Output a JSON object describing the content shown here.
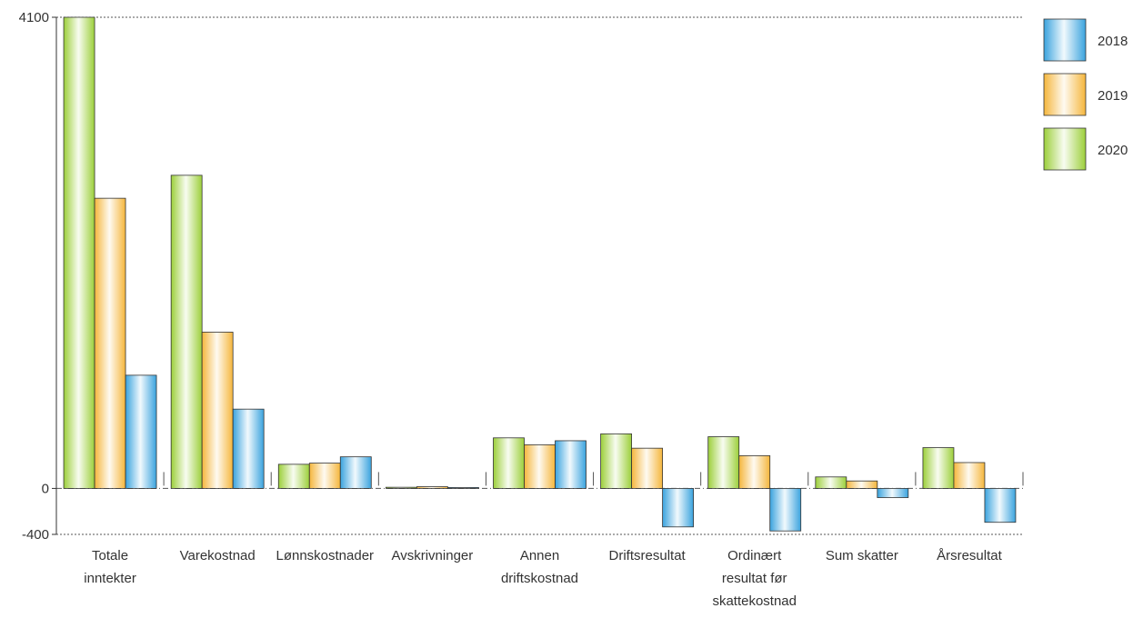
{
  "chart_data": {
    "type": "bar",
    "title": "",
    "xlabel": "",
    "ylabel": "",
    "ylim": [
      -400,
      4100
    ],
    "yticks": [
      4100,
      0,
      -400
    ],
    "grid": "dotted lines at 4100 and -400, dash-dot zero line",
    "legend_position": "top-right",
    "categories": [
      "Totale inntekter",
      "Varekostnad",
      "Lønnskostnader",
      "Avskrivninger",
      "Annen driftskostnad",
      "Driftsresultat",
      "Ordinært resultat før skattekostnad",
      "Sum skatter",
      "Årsresultat"
    ],
    "category_lines": [
      [
        "Totale",
        "inntekter"
      ],
      [
        "Varekostnad"
      ],
      [
        "Lønnskostnader"
      ],
      [
        "Avskrivninger"
      ],
      [
        "Annen",
        "driftskostnad"
      ],
      [
        "Driftsresultat"
      ],
      [
        "Ordinært",
        "resultat før",
        "skattekostnad"
      ],
      [
        "Sum skatter"
      ],
      [
        "Årsresultat"
      ]
    ],
    "series": [
      {
        "name": "2020",
        "color": "#9ccf3a",
        "values": [
          4100,
          2725,
          210,
          10,
          440,
          475,
          450,
          100,
          355
        ]
      },
      {
        "name": "2019",
        "color": "#f5b63c",
        "values": [
          2525,
          1360,
          220,
          15,
          380,
          350,
          285,
          65,
          225
        ]
      },
      {
        "name": "2018",
        "color": "#3aa3de",
        "values": [
          985,
          690,
          275,
          8,
          415,
          -335,
          -370,
          -80,
          -295
        ]
      }
    ],
    "legend_order": [
      "2018",
      "2019",
      "2020"
    ]
  }
}
